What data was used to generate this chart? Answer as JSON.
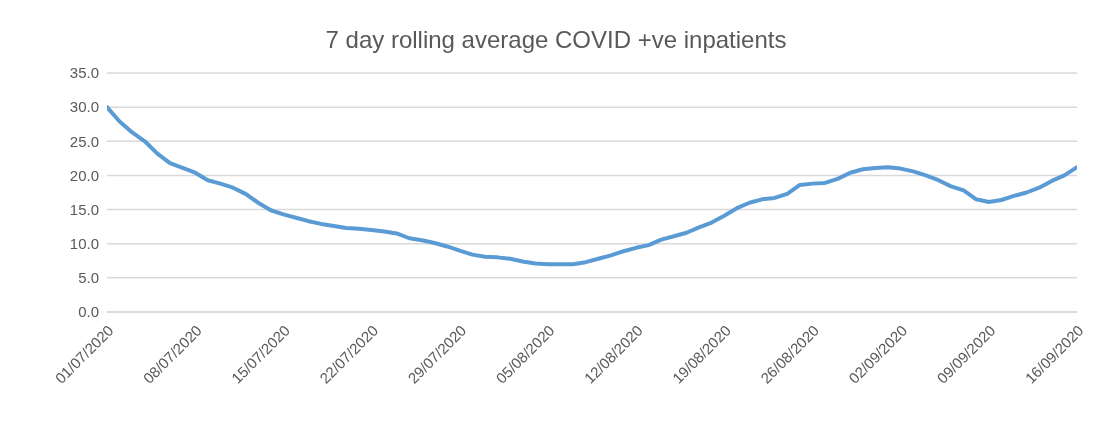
{
  "chart_data": {
    "type": "line",
    "title": "7 day rolling average COVID +ve inpatients",
    "categories": [
      "01/07/2020",
      null,
      null,
      null,
      null,
      null,
      null,
      "08/07/2020",
      null,
      null,
      null,
      null,
      null,
      null,
      "15/07/2020",
      null,
      null,
      null,
      null,
      null,
      null,
      "22/07/2020",
      null,
      null,
      null,
      null,
      null,
      null,
      "29/07/2020",
      null,
      null,
      null,
      null,
      null,
      null,
      "05/08/2020",
      null,
      null,
      null,
      null,
      null,
      null,
      "12/08/2020",
      null,
      null,
      null,
      null,
      null,
      null,
      "19/08/2020",
      null,
      null,
      null,
      null,
      null,
      null,
      "26/08/2020",
      null,
      null,
      null,
      null,
      null,
      null,
      "02/09/2020",
      null,
      null,
      null,
      null,
      null,
      null,
      "09/09/2020",
      null,
      null,
      null,
      null,
      null,
      null,
      "16/09/2020"
    ],
    "series": [
      {
        "color": "#5b9bd5",
        "values": [
          30.0,
          27.9,
          26.3,
          25.0,
          23.2,
          21.8,
          21.1,
          20.4,
          19.3,
          18.8,
          18.2,
          17.3,
          16.0,
          14.9,
          14.3,
          13.8,
          13.3,
          12.9,
          12.6,
          12.3,
          12.2,
          12.0,
          11.8,
          11.5,
          10.8,
          10.5,
          10.1,
          9.6,
          9.0,
          8.4,
          8.1,
          8.0,
          7.8,
          7.4,
          7.1,
          7.0,
          7.0,
          7.0,
          7.3,
          7.8,
          8.3,
          8.9,
          9.4,
          9.8,
          10.6,
          11.1,
          11.6,
          12.4,
          13.1,
          14.1,
          15.2,
          16.0,
          16.5,
          16.7,
          17.3,
          18.6,
          18.8,
          18.9,
          19.5,
          20.4,
          20.9,
          21.1,
          21.2,
          21.0,
          20.6,
          20.0,
          19.3,
          18.4,
          17.8,
          16.5,
          16.1,
          16.4,
          17.0,
          17.5,
          18.2,
          19.2,
          20.0,
          21.2
        ]
      }
    ],
    "ylim": [
      0,
      35
    ],
    "yticks": [
      {
        "value": 0,
        "label": "0.0"
      },
      {
        "value": 5,
        "label": "5.0"
      },
      {
        "value": 10,
        "label": "10.0"
      },
      {
        "value": 15,
        "label": "15.0"
      },
      {
        "value": 20,
        "label": "20.0"
      },
      {
        "value": 25,
        "label": "25.0"
      },
      {
        "value": 30,
        "label": "30.0"
      },
      {
        "value": 35,
        "label": "35.0"
      }
    ],
    "grid": "y",
    "marker": "none",
    "line_style": "solid",
    "legend": false
  }
}
